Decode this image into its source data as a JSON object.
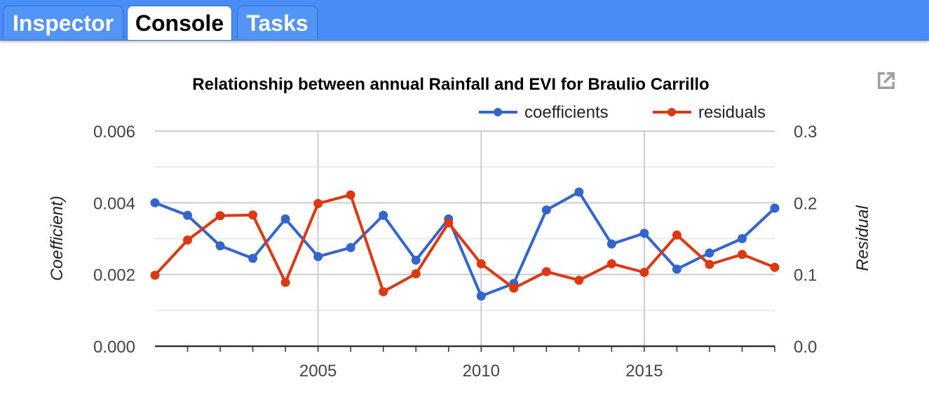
{
  "tabs": [
    {
      "label": "Inspector",
      "active": false
    },
    {
      "label": "Console",
      "active": true
    },
    {
      "label": "Tasks",
      "active": false
    }
  ],
  "popout_icon": "open-in-new-icon",
  "chart_data": {
    "type": "line",
    "title": "Relationship between annual Rainfall and EVI for Braulio Carrillo",
    "x": [
      2000,
      2001,
      2002,
      2003,
      2004,
      2005,
      2006,
      2007,
      2008,
      2009,
      2010,
      2011,
      2012,
      2013,
      2014,
      2015,
      2016,
      2017,
      2018,
      2019
    ],
    "xlim": [
      2000,
      2019
    ],
    "xticks": [
      2005,
      2010,
      2015
    ],
    "xtick_labels": [
      "2005",
      "2010",
      "2015"
    ],
    "y_left": {
      "label": "Coefficient)",
      "lim": [
        0,
        0.006
      ],
      "ticks": [
        0,
        0.002,
        0.004,
        0.006
      ],
      "tick_labels": [
        "0.000",
        "0.002",
        "0.004",
        "0.006"
      ]
    },
    "y_right": {
      "label": "Residual",
      "lim": [
        0,
        0.3
      ],
      "ticks": [
        0,
        0.1,
        0.2,
        0.3
      ],
      "tick_labels": [
        "0.0",
        "0.1",
        "0.2",
        "0.3"
      ]
    },
    "legend_position": "top-right",
    "grid": true,
    "series": [
      {
        "name": "coefficients",
        "axis": "left",
        "color": "#3366cc",
        "values": [
          0.004,
          0.00365,
          0.0028,
          0.00245,
          0.00355,
          0.0025,
          0.00275,
          0.00365,
          0.0024,
          0.00355,
          0.0014,
          0.00175,
          0.0038,
          0.0043,
          0.00285,
          0.00315,
          0.00215,
          0.0026,
          0.003,
          0.00385
        ]
      },
      {
        "name": "residuals",
        "axis": "right",
        "color": "#dc3912",
        "values": [
          0.099,
          0.148,
          0.182,
          0.183,
          0.089,
          0.199,
          0.211,
          0.076,
          0.101,
          0.172,
          0.115,
          0.081,
          0.104,
          0.092,
          0.115,
          0.103,
          0.155,
          0.114,
          0.128,
          0.11
        ]
      }
    ]
  }
}
